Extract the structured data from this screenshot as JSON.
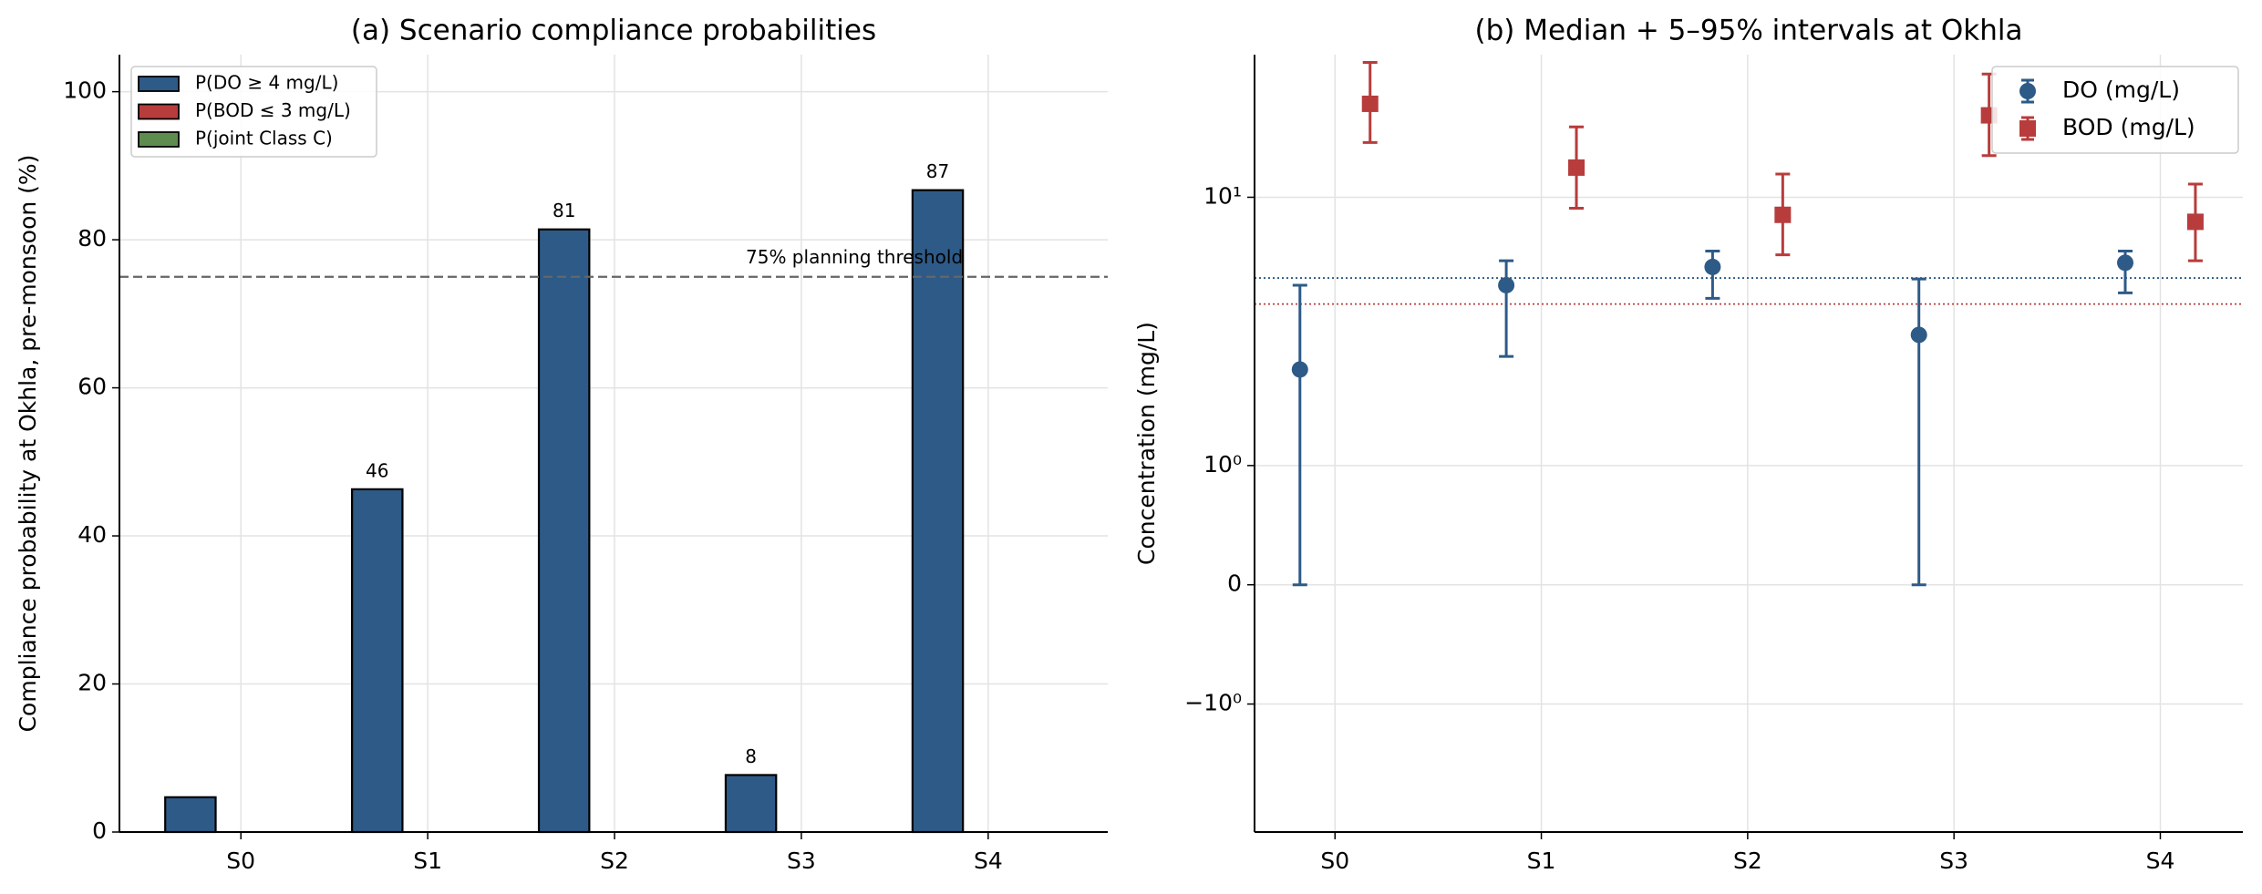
{
  "chart_data": [
    {
      "type": "bar",
      "title": "(a) Scenario compliance probabilities",
      "ylabel": "Compliance probability at Okhla, pre-monsoon  (%)",
      "categories": [
        "S0",
        "S1",
        "S2",
        "S3",
        "S4"
      ],
      "series": [
        {
          "name": "P(DO ≥ 4 mg/L)",
          "color": "#2e5a87",
          "values": [
            4.7,
            46.3,
            81.4,
            7.7,
            86.7
          ],
          "value_labels": [
            null,
            "46",
            "81",
            "8",
            "87"
          ]
        },
        {
          "name": "P(BOD ≤ 3 mg/L)",
          "color": "#b83c3c",
          "values": [
            0,
            0,
            0,
            0,
            0
          ]
        },
        {
          "name": "P(joint Class C)",
          "color": "#5e8c4f",
          "values": [
            0,
            0,
            0,
            0,
            0
          ]
        }
      ],
      "threshold": {
        "value": 75,
        "label": "75% planning threshold"
      },
      "ylim": [
        0,
        105
      ],
      "yticks": [
        0,
        20,
        40,
        60,
        80,
        100
      ],
      "grid": true,
      "legend": "upper left"
    },
    {
      "type": "errorbar",
      "title": "(b) Median + 5–95% intervals at Okhla",
      "ylabel": "Concentration (mg/L)",
      "yscale": "symlog",
      "linthresh": 1,
      "linscale": 0.4,
      "categories": [
        "S0",
        "S1",
        "S2",
        "S3",
        "S4"
      ],
      "series": [
        {
          "name": "DO (mg/L)",
          "color": "#2e5a87",
          "marker": "circle",
          "values": [
            2.28,
            4.7,
            5.5,
            3.07,
            5.7
          ],
          "lower": [
            0,
            2.55,
            4.2,
            0,
            4.4
          ],
          "upper": [
            4.7,
            5.8,
            6.3,
            4.96,
            6.3
          ]
        },
        {
          "name": "BOD (mg/L)",
          "color": "#b83c3c",
          "marker": "square",
          "values": [
            22.3,
            12.9,
            8.6,
            20.2,
            8.1
          ],
          "lower": [
            16.0,
            9.1,
            6.1,
            14.3,
            5.8
          ],
          "upper": [
            31.8,
            18.3,
            12.2,
            28.8,
            11.2
          ]
        }
      ],
      "reference_lines": [
        {
          "value": 5,
          "color": "#2e5a87"
        },
        {
          "value": 4,
          "color": "#b83c3c"
        }
      ],
      "ylim": [
        -3,
        34
      ],
      "yticks": [
        {
          "value": -1,
          "label": "−10⁰"
        },
        0,
        {
          "value": 1,
          "label": "10⁰"
        },
        {
          "value": 10,
          "label": "10¹"
        }
      ],
      "grid": true,
      "legend": "upper right"
    }
  ]
}
